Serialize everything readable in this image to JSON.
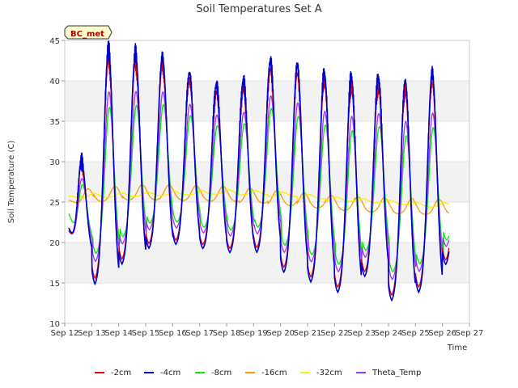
{
  "chart_data": {
    "type": "line",
    "title": "Soil Temperatures Set A",
    "xlabel": "Time",
    "ylabel": "Soil Temperature (C)",
    "site_tag": "BC_met",
    "ylim": [
      10,
      45
    ],
    "yticks": [
      10,
      15,
      20,
      25,
      30,
      35,
      40,
      45
    ],
    "xlim": [
      12,
      27
    ],
    "xticks": [
      {
        "value": 12,
        "label": "Sep 12"
      },
      {
        "value": 13,
        "label": "Sep 13"
      },
      {
        "value": 14,
        "label": "Sep 14"
      },
      {
        "value": 15,
        "label": "Sep 15"
      },
      {
        "value": 16,
        "label": "Sep 16"
      },
      {
        "value": 17,
        "label": "Sep 17"
      },
      {
        "value": 18,
        "label": "Sep 18"
      },
      {
        "value": 19,
        "label": "Sep 19"
      },
      {
        "value": 20,
        "label": "Sep 20"
      },
      {
        "value": 21,
        "label": "Sep 21"
      },
      {
        "value": 22,
        "label": "Sep 22"
      },
      {
        "value": 23,
        "label": "Sep 23"
      },
      {
        "value": 24,
        "label": "Sep 24"
      },
      {
        "value": 25,
        "label": "Sep 25"
      },
      {
        "value": 26,
        "label": "Sep 26"
      },
      {
        "value": 27,
        "label": "Sep 27"
      }
    ],
    "grid": true,
    "background_bands": "alternating light gray",
    "legend_position": "bottom",
    "days": [
      {
        "day": 12,
        "min": 18.5,
        "max": 30.0
      },
      {
        "day": 13,
        "min": 14.5,
        "max": 44.0
      },
      {
        "day": 14,
        "min": 17.0,
        "max": 43.5
      },
      {
        "day": 15,
        "min": 19.0,
        "max": 43.0
      },
      {
        "day": 16,
        "min": 19.5,
        "max": 41.0
      },
      {
        "day": 17,
        "min": 19.0,
        "max": 39.5
      },
      {
        "day": 18,
        "min": 18.5,
        "max": 40.0
      },
      {
        "day": 19,
        "min": 18.5,
        "max": 42.5
      },
      {
        "day": 20,
        "min": 16.0,
        "max": 42.0
      },
      {
        "day": 21,
        "min": 14.8,
        "max": 41.0
      },
      {
        "day": 22,
        "min": 13.5,
        "max": 40.5
      },
      {
        "day": 23,
        "min": 15.5,
        "max": 40.5
      },
      {
        "day": 24,
        "min": 12.5,
        "max": 40.0
      },
      {
        "day": 25,
        "min": 13.5,
        "max": 41.0
      },
      {
        "day": 26,
        "min": 17.0,
        "max": 40.5
      }
    ],
    "series": [
      {
        "name": "-2cm",
        "color": "#dd0000",
        "amp_factor": 0.93,
        "phase": 0.0,
        "start": 21.5
      },
      {
        "name": "-4cm",
        "color": "#0000cc",
        "amp_factor": 1.0,
        "phase": 0.0,
        "start": 21.8
      },
      {
        "name": "-8cm",
        "color": "#00ee00",
        "amp_factor": 0.62,
        "phase": 0.04,
        "start": 23.6
      },
      {
        "name": "-16cm",
        "color": "#ff9900",
        "amp_factor": 0.14,
        "phase": 0.25,
        "start": 25.2
      },
      {
        "name": "-32cm",
        "color": "#ffee00",
        "amp_factor": 0.03,
        "phase": 0.45,
        "start": 25.7
      },
      {
        "name": "Theta_Temp",
        "color": "#9933ff",
        "amp_factor": 0.72,
        "phase": 0.02,
        "start": 21.4
      }
    ],
    "mean_by_depth": {
      "-16cm": [
        25.5,
        25.8,
        26.0,
        26.0,
        25.9,
        25.8,
        25.6,
        25.3,
        25.0,
        24.7,
        24.5,
        24.3,
        24.2
      ],
      "-32cm": [
        25.7,
        25.8,
        25.9,
        26.0,
        26.1,
        26.2,
        26.1,
        25.9,
        25.6,
        25.3,
        25.1,
        24.9,
        24.6
      ]
    }
  }
}
